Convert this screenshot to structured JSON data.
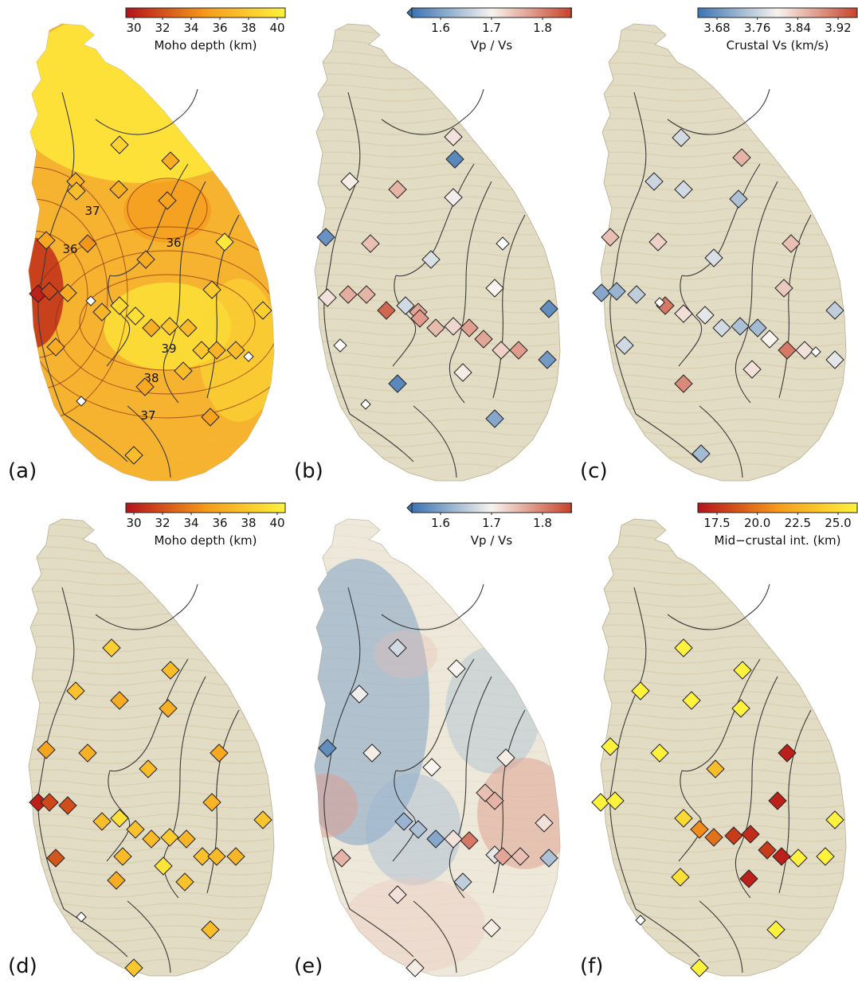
{
  "colors": {
    "background": "#ffffff",
    "terrain": "#e3dcc4",
    "terrain_shade": "#cfc3a2",
    "boundary_lines": "#3a3a3a",
    "hot_low": "#b5121b",
    "hot_mid": "#f59a1b",
    "hot_high": "#fff23d",
    "div_low": "#3b74b3",
    "div_mid": "#f7f3ee",
    "div_high": "#c8432a"
  },
  "panels": [
    {
      "letter": "(a)",
      "colorbar": {
        "label": "Moho depth (km)",
        "ticks": [
          "30",
          "32",
          "34",
          "36",
          "38",
          "40"
        ],
        "scale": "hot",
        "extend": false
      },
      "background": "moho_field",
      "contour_labels": [
        "37",
        "36",
        "36",
        "39",
        "38",
        "37"
      ],
      "stations": [
        {
          "value": 0.65
        },
        {
          "value": 0.82
        },
        {
          "value": 0.6
        },
        {
          "value": 0.7
        },
        {
          "value": 0.62
        },
        {
          "value": 0.55
        },
        {
          "value": 0.58
        },
        {
          "value": 0.48
        },
        {
          "value": 0.6
        },
        {
          "value": 0.05
        },
        {
          "value": 0.2
        },
        {
          "value": 0.6
        },
        {
          "value": 0.85
        },
        {
          "value": 0.9
        },
        {
          "value": 0.62
        },
        {
          "value": 0.75
        },
        {
          "value": 0.68
        },
        {
          "value": 0.78
        },
        {
          "value": 0.95
        },
        {
          "value": 0.8
        },
        {
          "value": 0.66
        },
        {
          "value": 0.6
        },
        {
          "value": 0.75
        },
        {
          "value": 0.65
        },
        {
          "value": 0.7
        },
        {
          "value": 0.7
        },
        {
          "value": 0.58
        },
        {
          "value": 0.6
        },
        {
          "value": 0.72
        },
        {
          "value": 0.62
        },
        {
          "value": 0.55
        },
        {
          "value": 0.7
        }
      ]
    },
    {
      "letter": "(b)",
      "colorbar": {
        "label": "Vp / Vs",
        "ticks": [
          "1.6",
          "1.7",
          "1.8"
        ],
        "scale": "div",
        "extend": true
      },
      "background": "terrain",
      "contour_labels": [],
      "stations": [
        {
          "value": 0.55
        },
        {
          "value": 0.08
        },
        {
          "value": 0.52
        },
        {
          "value": 0.68
        },
        {
          "value": 0.48
        },
        {
          "value": 0.12
        },
        {
          "value": 0.65
        },
        {
          "value": 0.25
        },
        {
          "value": 0.42
        },
        {
          "value": 0.5
        },
        {
          "value": 0.7
        },
        {
          "value": 0.68
        },
        {
          "value": 0.72
        },
        {
          "value": 0.9
        },
        {
          "value": 0.4
        },
        {
          "value": 0.75
        },
        {
          "value": 0.66
        },
        {
          "value": 0.58
        },
        {
          "value": 0.74
        },
        {
          "value": 0.72
        },
        {
          "value": 0.6
        },
        {
          "value": 0.75
        },
        {
          "value": 0.1
        },
        {
          "value": 0.15
        },
        {
          "value": 0.52
        },
        {
          "value": 0.08
        },
        {
          "value": 0.2
        },
        {
          "value": 0.55
        },
        {
          "value": 0.1
        },
        {
          "value": 0.52
        }
      ]
    },
    {
      "letter": "(c)",
      "colorbar": {
        "label": "Crustal Vs (km/s)",
        "ticks": [
          "3.68",
          "3.76",
          "3.84",
          "3.92"
        ],
        "scale": "div",
        "extend": false
      },
      "background": "terrain",
      "contour_labels": [],
      "stations": [
        {
          "value": 0.4
        },
        {
          "value": 0.68
        },
        {
          "value": 0.38
        },
        {
          "value": 0.4
        },
        {
          "value": 0.3
        },
        {
          "value": 0.65
        },
        {
          "value": 0.6
        },
        {
          "value": 0.42
        },
        {
          "value": 0.65
        },
        {
          "value": 0.62
        },
        {
          "value": 0.2
        },
        {
          "value": 0.25
        },
        {
          "value": 0.35
        },
        {
          "value": 0.85
        },
        {
          "value": 0.62
        },
        {
          "value": 0.56
        },
        {
          "value": 0.45
        },
        {
          "value": 0.4
        },
        {
          "value": 0.3
        },
        {
          "value": 0.28
        },
        {
          "value": 0.5
        },
        {
          "value": 0.85
        },
        {
          "value": 0.55
        },
        {
          "value": 0.35
        },
        {
          "value": 0.45
        },
        {
          "value": 0.8
        },
        {
          "value": 0.4
        },
        {
          "value": 0.55
        },
        {
          "value": 0.28
        },
        {
          "value": 0.56
        }
      ]
    },
    {
      "letter": "(d)",
      "colorbar": {
        "label": "Moho depth (km)",
        "ticks": [
          "30",
          "32",
          "34",
          "36",
          "38",
          "40"
        ],
        "scale": "hot",
        "extend": false
      },
      "background": "terrain",
      "contour_labels": [],
      "stations": [
        {
          "value": 0.8
        },
        {
          "value": 0.7
        },
        {
          "value": 0.72
        },
        {
          "value": 0.6
        },
        {
          "value": 0.62
        },
        {
          "value": 0.55
        },
        {
          "value": 0.62
        },
        {
          "value": 0.7
        },
        {
          "value": 0.58
        },
        {
          "value": 0.05
        },
        {
          "value": 0.2
        },
        {
          "value": 0.22
        },
        {
          "value": 0.7
        },
        {
          "value": 0.9
        },
        {
          "value": 0.72
        },
        {
          "value": 0.68
        },
        {
          "value": 0.78
        },
        {
          "value": 0.66
        },
        {
          "value": 0.65
        },
        {
          "value": 0.74
        },
        {
          "value": 0.72
        },
        {
          "value": 0.68
        },
        {
          "value": 0.25
        },
        {
          "value": 0.6
        },
        {
          "value": 0.72
        },
        {
          "value": 0.66
        },
        {
          "value": 0.7
        },
        {
          "value": 0.75
        },
        {
          "value": 0.92
        },
        {
          "value": 0.68
        },
        {
          "value": 0.62
        }
      ]
    },
    {
      "letter": "(e)",
      "colorbar": {
        "label": "Vp / Vs",
        "ticks": [
          "1.6",
          "1.7",
          "1.8"
        ],
        "scale": "div",
        "extend": true
      },
      "background": "vpvs_field",
      "contour_labels": [],
      "stations": [
        {
          "value": 0.4
        },
        {
          "value": 0.5
        },
        {
          "value": 0.48
        },
        {
          "value": 0.1
        },
        {
          "value": 0.52
        },
        {
          "value": 0.5
        },
        {
          "value": 0.25
        },
        {
          "value": 0.68
        },
        {
          "value": 0.65
        },
        {
          "value": 0.3
        },
        {
          "value": 0.2
        },
        {
          "value": 0.55
        },
        {
          "value": 0.85
        },
        {
          "value": 0.45
        },
        {
          "value": 0.72
        },
        {
          "value": 0.65
        },
        {
          "value": 0.3
        },
        {
          "value": 0.55
        },
        {
          "value": 0.52
        },
        {
          "value": 0.68
        },
        {
          "value": 0.55
        },
        {
          "value": 0.52
        },
        {
          "value": 0.52
        },
        {
          "value": 0.35
        }
      ]
    },
    {
      "letter": "(f)",
      "colorbar": {
        "label": "Mid−crustal int. (km)",
        "ticks": [
          "17.5",
          "20.0",
          "22.5",
          "25.0"
        ],
        "scale": "hot",
        "extend": false
      },
      "background": "terrain",
      "contour_labels": [],
      "stations": [
        {
          "value": 1.0
        },
        {
          "value": 1.0
        },
        {
          "value": 1.0
        },
        {
          "value": 1.0
        },
        {
          "value": 1.0
        },
        {
          "value": 1.0
        },
        {
          "value": 0.05
        },
        {
          "value": 0.7
        },
        {
          "value": 0.05
        },
        {
          "value": 1.0
        },
        {
          "value": 1.0
        },
        {
          "value": 1.0
        },
        {
          "value": 0.85
        },
        {
          "value": 0.45
        },
        {
          "value": 0.35
        },
        {
          "value": 0.15
        },
        {
          "value": 0.1
        },
        {
          "value": 0.15
        },
        {
          "value": 0.05
        },
        {
          "value": 1.0
        },
        {
          "value": 1.0
        },
        {
          "value": 1.0
        },
        {
          "value": 0.9
        },
        {
          "value": 0.05
        },
        {
          "value": 1.0
        },
        {
          "value": 1.0
        },
        {
          "value": 1.0
        }
      ]
    }
  ]
}
